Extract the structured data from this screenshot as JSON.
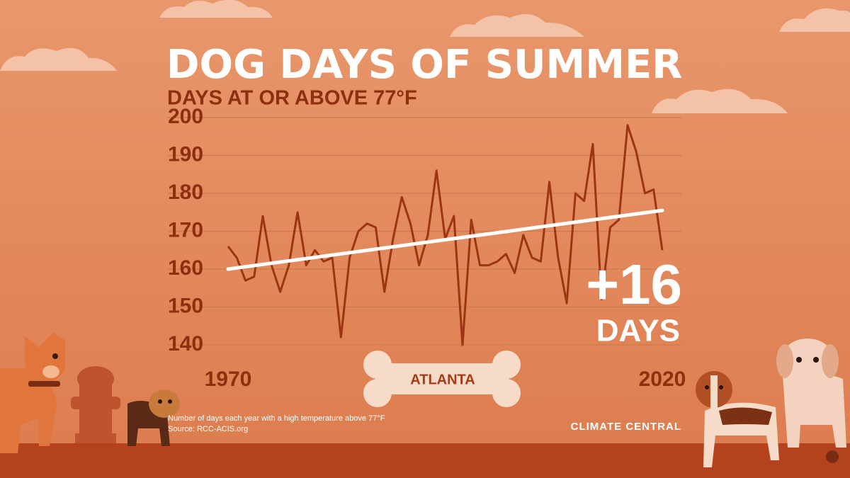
{
  "chart_data": {
    "type": "line",
    "title": "DOG DAYS OF SUMMER",
    "subtitle": "DAYS AT OR ABOVE 77°F",
    "x": [
      1970,
      1971,
      1972,
      1973,
      1974,
      1975,
      1976,
      1977,
      1978,
      1979,
      1980,
      1981,
      1982,
      1983,
      1984,
      1985,
      1986,
      1987,
      1988,
      1989,
      1990,
      1991,
      1992,
      1993,
      1994,
      1995,
      1996,
      1997,
      1998,
      1999,
      2000,
      2001,
      2002,
      2003,
      2004,
      2005,
      2006,
      2007,
      2008,
      2009,
      2010,
      2011,
      2012,
      2013,
      2014,
      2015,
      2016,
      2017,
      2018,
      2019,
      2020
    ],
    "series": [
      {
        "color": "#9c3513",
        "values": [
          166,
          163,
          157,
          158,
          174,
          161,
          154,
          161,
          175,
          161,
          165,
          162,
          163,
          142,
          163,
          170,
          172,
          171,
          154,
          168,
          179,
          172,
          161,
          169,
          186,
          168,
          174,
          140,
          173,
          161,
          161,
          162,
          164,
          159,
          169,
          163,
          162,
          183,
          163,
          151,
          180,
          178,
          193,
          152,
          171,
          173,
          198,
          191,
          180,
          181,
          165
        ]
      }
    ],
    "trend": {
      "color": "#ffffff",
      "x": [
        1970,
        2020
      ],
      "values": [
        160,
        175.5
      ]
    },
    "xlim": [
      1970,
      2020
    ],
    "xticks": [
      1970,
      2020
    ],
    "ylim": [
      140,
      200
    ],
    "yticks": [
      140,
      150,
      160,
      170,
      180,
      190,
      200
    ],
    "grid": true,
    "annotation": {
      "change": "+16",
      "unit": "DAYS"
    },
    "location": "ATLANTA",
    "note": "Number of days each year with a high temperature above 77°F",
    "source": "Source: RCC-ACIS.org",
    "brand": "CLIMATE CENTRAL"
  }
}
